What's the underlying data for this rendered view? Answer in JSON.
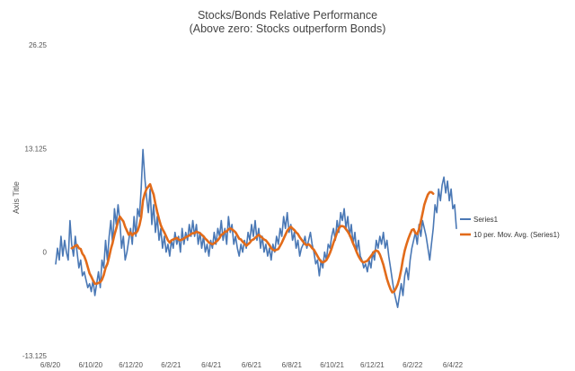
{
  "chart_data": {
    "type": "line",
    "title": "Stocks/Bonds Relative Performance",
    "subtitle": "(Above zero:  Stocks outperform Bonds)",
    "xlabel": "",
    "ylabel": "Axis Title",
    "ylim": [
      -13.125,
      26.25
    ],
    "yticks": [
      "26.25",
      "13.125",
      "0",
      "-13.125"
    ],
    "yticks_values": [
      26.25,
      13.125,
      0,
      -13.125
    ],
    "x_tick_labels": [
      "6/8/20",
      "6/10/20",
      "6/12/20",
      "6/2/21",
      "6/4/21",
      "6/6/21",
      "6/8/21",
      "6/10/21",
      "6/12/21",
      "6/2/22",
      "6/4/22"
    ],
    "grid": false,
    "legend_position": "right",
    "colors": {
      "series1": "#4a78b5",
      "moving_avg": "#e26b1a"
    },
    "series": [
      {
        "name": "Series1",
        "values": [
          -1.5,
          0.5,
          -1.0,
          2.0,
          -0.5,
          1.5,
          0.0,
          -1.0,
          4.0,
          1.0,
          -0.5,
          2.0,
          0.0,
          -2.0,
          -1.0,
          -3.0,
          -2.5,
          -3.5,
          -4.5,
          -4.0,
          -5.0,
          -3.5,
          -5.5,
          -4.0,
          -2.5,
          -4.5,
          -1.0,
          -2.0,
          1.5,
          -1.0,
          2.0,
          4.0,
          1.0,
          5.5,
          3.5,
          6.0,
          4.0,
          0.5,
          2.0,
          -1.0,
          0.0,
          1.5,
          3.0,
          1.0,
          4.5,
          2.0,
          5.5,
          4.5,
          8.0,
          13.0,
          9.5,
          7.0,
          5.0,
          8.0,
          3.5,
          6.0,
          2.5,
          4.5,
          1.5,
          3.0,
          0.5,
          2.0,
          0.0,
          1.0,
          -0.5,
          1.5,
          0.5,
          2.5,
          1.0,
          2.0,
          0.0,
          3.0,
          1.0,
          2.5,
          1.5,
          3.5,
          2.0,
          4.0,
          2.0,
          3.5,
          1.0,
          2.5,
          0.5,
          2.0,
          0.0,
          1.0,
          -0.5,
          1.5,
          0.5,
          2.5,
          1.0,
          3.0,
          2.0,
          4.0,
          1.5,
          3.0,
          1.0,
          4.5,
          2.5,
          3.5,
          1.0,
          2.0,
          0.5,
          -0.5,
          1.0,
          0.0,
          1.5,
          0.5,
          2.5,
          1.5,
          3.5,
          2.0,
          4.0,
          1.5,
          3.0,
          0.5,
          2.0,
          0.0,
          1.0,
          -0.5,
          0.5,
          -1.0,
          1.0,
          0.0,
          2.0,
          1.0,
          3.0,
          2.0,
          4.5,
          3.0,
          5.0,
          2.5,
          3.5,
          1.5,
          2.5,
          0.5,
          1.5,
          -0.5,
          0.5,
          1.0,
          2.0,
          0.5,
          1.5,
          2.5,
          1.0,
          0.0,
          -1.5,
          -1.0,
          -3.0,
          -1.0,
          -2.0,
          0.0,
          -1.0,
          1.0,
          0.5,
          2.0,
          3.0,
          1.5,
          4.0,
          2.5,
          5.0,
          4.0,
          5.5,
          3.0,
          4.5,
          2.0,
          3.5,
          1.0,
          2.5,
          0.0,
          1.5,
          -0.5,
          -1.0,
          -2.0,
          -1.5,
          -2.5,
          -1.0,
          -2.0,
          0.0,
          -1.0,
          1.5,
          0.5,
          2.0,
          1.0,
          2.5,
          0.5,
          1.5,
          -0.5,
          -2.0,
          -3.5,
          -5.0,
          -6.0,
          -7.0,
          -5.5,
          -4.0,
          -5.5,
          -3.0,
          -2.0,
          -3.5,
          -1.0,
          0.5,
          1.5,
          2.5,
          1.0,
          3.5,
          2.0,
          4.0,
          3.0,
          2.0,
          0.5,
          -1.0,
          1.0,
          3.0,
          6.0,
          5.0,
          8.0,
          6.5,
          8.5,
          9.5,
          7.5,
          9.0,
          6.5,
          8.0,
          5.5,
          6.0,
          3.0
        ]
      },
      {
        "name": "10 per. Mov. Avg. (Series1)",
        "values": [
          null,
          null,
          null,
          null,
          null,
          null,
          null,
          null,
          null,
          0.5,
          0.6,
          0.8,
          0.9,
          0.5,
          0.4,
          -0.2,
          -0.5,
          -1.1,
          -1.9,
          -2.7,
          -3.1,
          -3.6,
          -4.0,
          -4.0,
          -3.9,
          -3.8,
          -3.5,
          -2.9,
          -2.0,
          -1.5,
          -0.6,
          0.4,
          1.2,
          2.2,
          3.0,
          3.9,
          4.5,
          4.2,
          3.9,
          3.2,
          2.7,
          2.2,
          2.5,
          2.1,
          2.4,
          2.4,
          2.7,
          3.4,
          4.4,
          6.5,
          7.4,
          8.0,
          8.3,
          8.6,
          7.9,
          7.3,
          6.1,
          5.1,
          4.2,
          3.4,
          2.9,
          2.5,
          2.0,
          1.5,
          1.2,
          1.5,
          1.6,
          1.7,
          1.8,
          1.6,
          1.5,
          1.6,
          1.7,
          1.9,
          2.0,
          2.1,
          2.3,
          2.4,
          2.4,
          2.6,
          2.5,
          2.4,
          2.2,
          2.0,
          1.7,
          1.5,
          1.2,
          1.1,
          1.0,
          1.1,
          1.3,
          1.5,
          1.8,
          2.2,
          2.3,
          2.6,
          2.6,
          2.9,
          3.0,
          2.9,
          2.7,
          2.5,
          2.1,
          1.7,
          1.6,
          1.3,
          1.1,
          0.8,
          1.0,
          1.2,
          1.5,
          1.6,
          1.8,
          2.0,
          2.2,
          2.0,
          1.8,
          1.6,
          1.5,
          1.2,
          0.9,
          0.5,
          0.3,
          0.2,
          0.3,
          0.4,
          0.8,
          1.2,
          1.7,
          2.2,
          2.7,
          3.0,
          3.2,
          3.0,
          2.8,
          2.5,
          2.3,
          1.9,
          1.6,
          1.3,
          1.0,
          0.9,
          1.0,
          0.8,
          0.5,
          0.3,
          -0.1,
          -0.5,
          -0.9,
          -1.2,
          -1.3,
          -1.2,
          -1.0,
          -0.6,
          -0.1,
          0.5,
          1.2,
          1.8,
          2.5,
          3.0,
          3.3,
          3.3,
          3.2,
          2.9,
          2.6,
          2.2,
          1.7,
          1.1,
          0.6,
          0.0,
          -0.5,
          -0.9,
          -1.2,
          -1.3,
          -1.2,
          -1.1,
          -0.8,
          -0.5,
          -0.2,
          0.1,
          0.2,
          0.1,
          -0.3,
          -0.9,
          -1.6,
          -2.5,
          -3.4,
          -4.1,
          -4.7,
          -5.1,
          -5.0,
          -4.6,
          -4.1,
          -3.3,
          -2.2,
          -0.9,
          0.2,
          1.0,
          1.7,
          2.3,
          2.8,
          2.9,
          2.4,
          2.3,
          2.9,
          3.9,
          4.9,
          6.0,
          6.7,
          7.3,
          7.6,
          7.6,
          7.4
        ]
      }
    ]
  }
}
